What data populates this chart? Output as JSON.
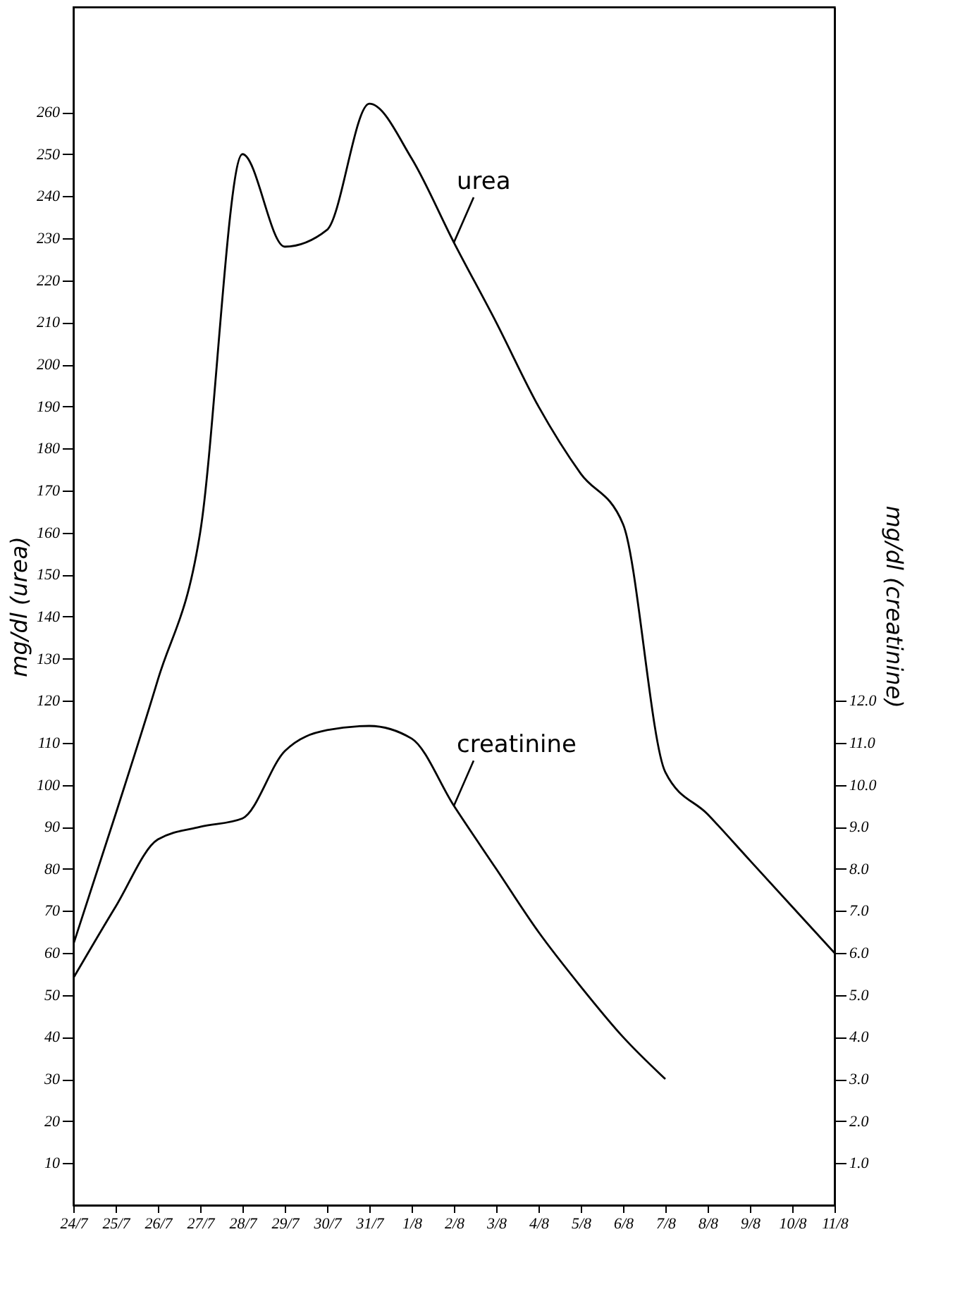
{
  "chart_data": {
    "type": "line",
    "ylabel": "mg/dl (urea)",
    "y2label": "mg/dl (creatinine)",
    "categories": [
      "24/7",
      "25/7",
      "26/7",
      "27/7",
      "28/7",
      "29/7",
      "30/7",
      "31/7",
      "1/8",
      "2/8",
      "3/8",
      "4/8",
      "5/8",
      "6/8",
      "7/8",
      "8/8",
      "9/8",
      "10/8",
      "11/8"
    ],
    "series": [
      {
        "name": "urea",
        "color": "#000000",
        "values": [
          62,
          93,
          125,
          160,
          250,
          228,
          232,
          262,
          249,
          229,
          210,
          190,
          174,
          162,
          103,
          93,
          82,
          71,
          60
        ]
      },
      {
        "name": "creatinine",
        "color": "#000000",
        "axis": "y2",
        "values": [
          5.4,
          7.1,
          8.7,
          9.0,
          9.2,
          10.8,
          11.3,
          11.4,
          11.1,
          9.5,
          8.0,
          6.5,
          5.2,
          4.0,
          3.0,
          null,
          null,
          null,
          null
        ]
      }
    ],
    "ylim": [
      0,
      285
    ],
    "yticks": [
      10,
      20,
      30,
      40,
      50,
      60,
      70,
      80,
      90,
      100,
      110,
      120,
      130,
      140,
      150,
      160,
      170,
      180,
      190,
      200,
      210,
      220,
      230,
      240,
      250,
      260
    ],
    "y2lim": [
      0,
      28.5
    ],
    "y2ticks": [
      {
        "value": 1,
        "label": "1.0"
      },
      {
        "value": 2,
        "label": "2.0"
      },
      {
        "value": 3,
        "label": "3.0"
      },
      {
        "value": 4,
        "label": "4.0"
      },
      {
        "value": 5,
        "label": "5.0"
      },
      {
        "value": 6,
        "label": "6.0"
      },
      {
        "value": 7,
        "label": "7.0"
      },
      {
        "value": 8,
        "label": "8.0"
      },
      {
        "value": 9,
        "label": "9.0"
      },
      {
        "value": 10,
        "label": "10.0"
      },
      {
        "value": 11,
        "label": "11.0"
      },
      {
        "value": 12,
        "label": "12.0"
      }
    ],
    "grid": false,
    "marker": "none",
    "line_style": "solid"
  }
}
